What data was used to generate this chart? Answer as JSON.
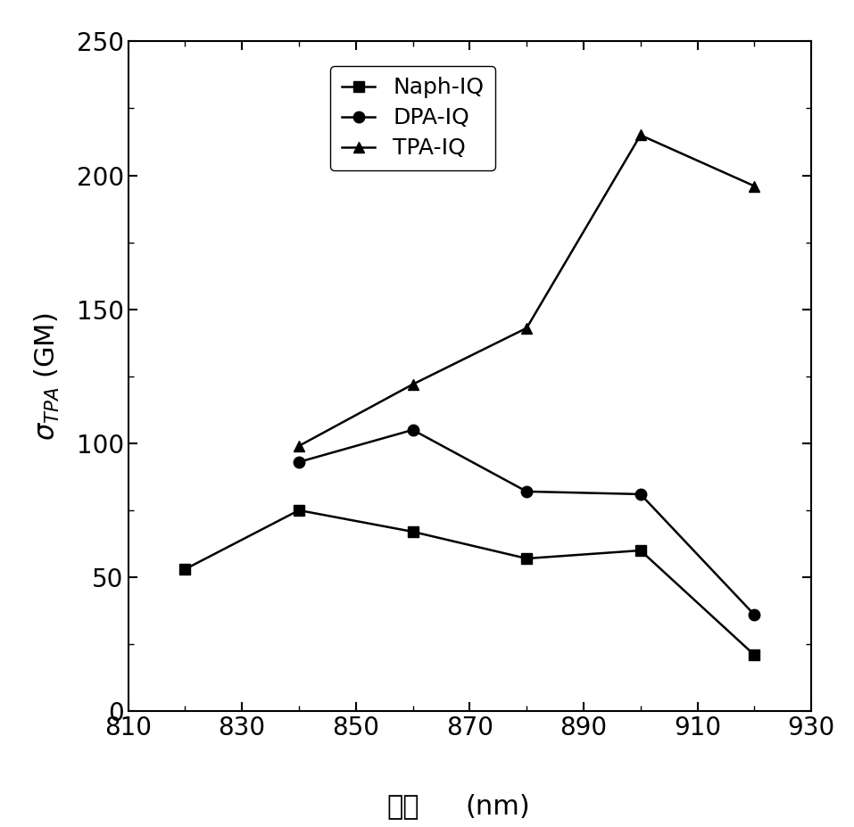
{
  "naph_iq_x": [
    820,
    840,
    860,
    880,
    900,
    920
  ],
  "naph_iq_y": [
    53,
    75,
    67,
    57,
    60,
    21
  ],
  "dpa_iq_x": [
    840,
    860,
    880,
    900,
    920
  ],
  "dpa_iq_y": [
    93,
    105,
    82,
    81,
    36
  ],
  "tpa_iq_x": [
    840,
    860,
    880,
    900,
    920
  ],
  "tpa_iq_y": [
    99,
    122,
    143,
    215,
    196
  ],
  "xlabel_chinese": "波长",
  "xlabel_unit": "(nm)",
  "xlim": [
    810,
    930
  ],
  "ylim": [
    0,
    250
  ],
  "xticks": [
    810,
    830,
    850,
    870,
    890,
    910,
    930
  ],
  "yticks": [
    0,
    50,
    100,
    150,
    200,
    250
  ],
  "legend_labels": [
    "Naph-IQ",
    "DPA-IQ",
    "TPA-IQ"
  ],
  "line_color": "#000000",
  "marker_naph": "s",
  "marker_dpa": "o",
  "marker_tpa": "^",
  "markersize": 9,
  "linewidth": 1.8,
  "tick_labelsize": 20,
  "ylabel_fontsize": 22,
  "xlabel_fontsize": 22,
  "legend_fontsize": 18
}
